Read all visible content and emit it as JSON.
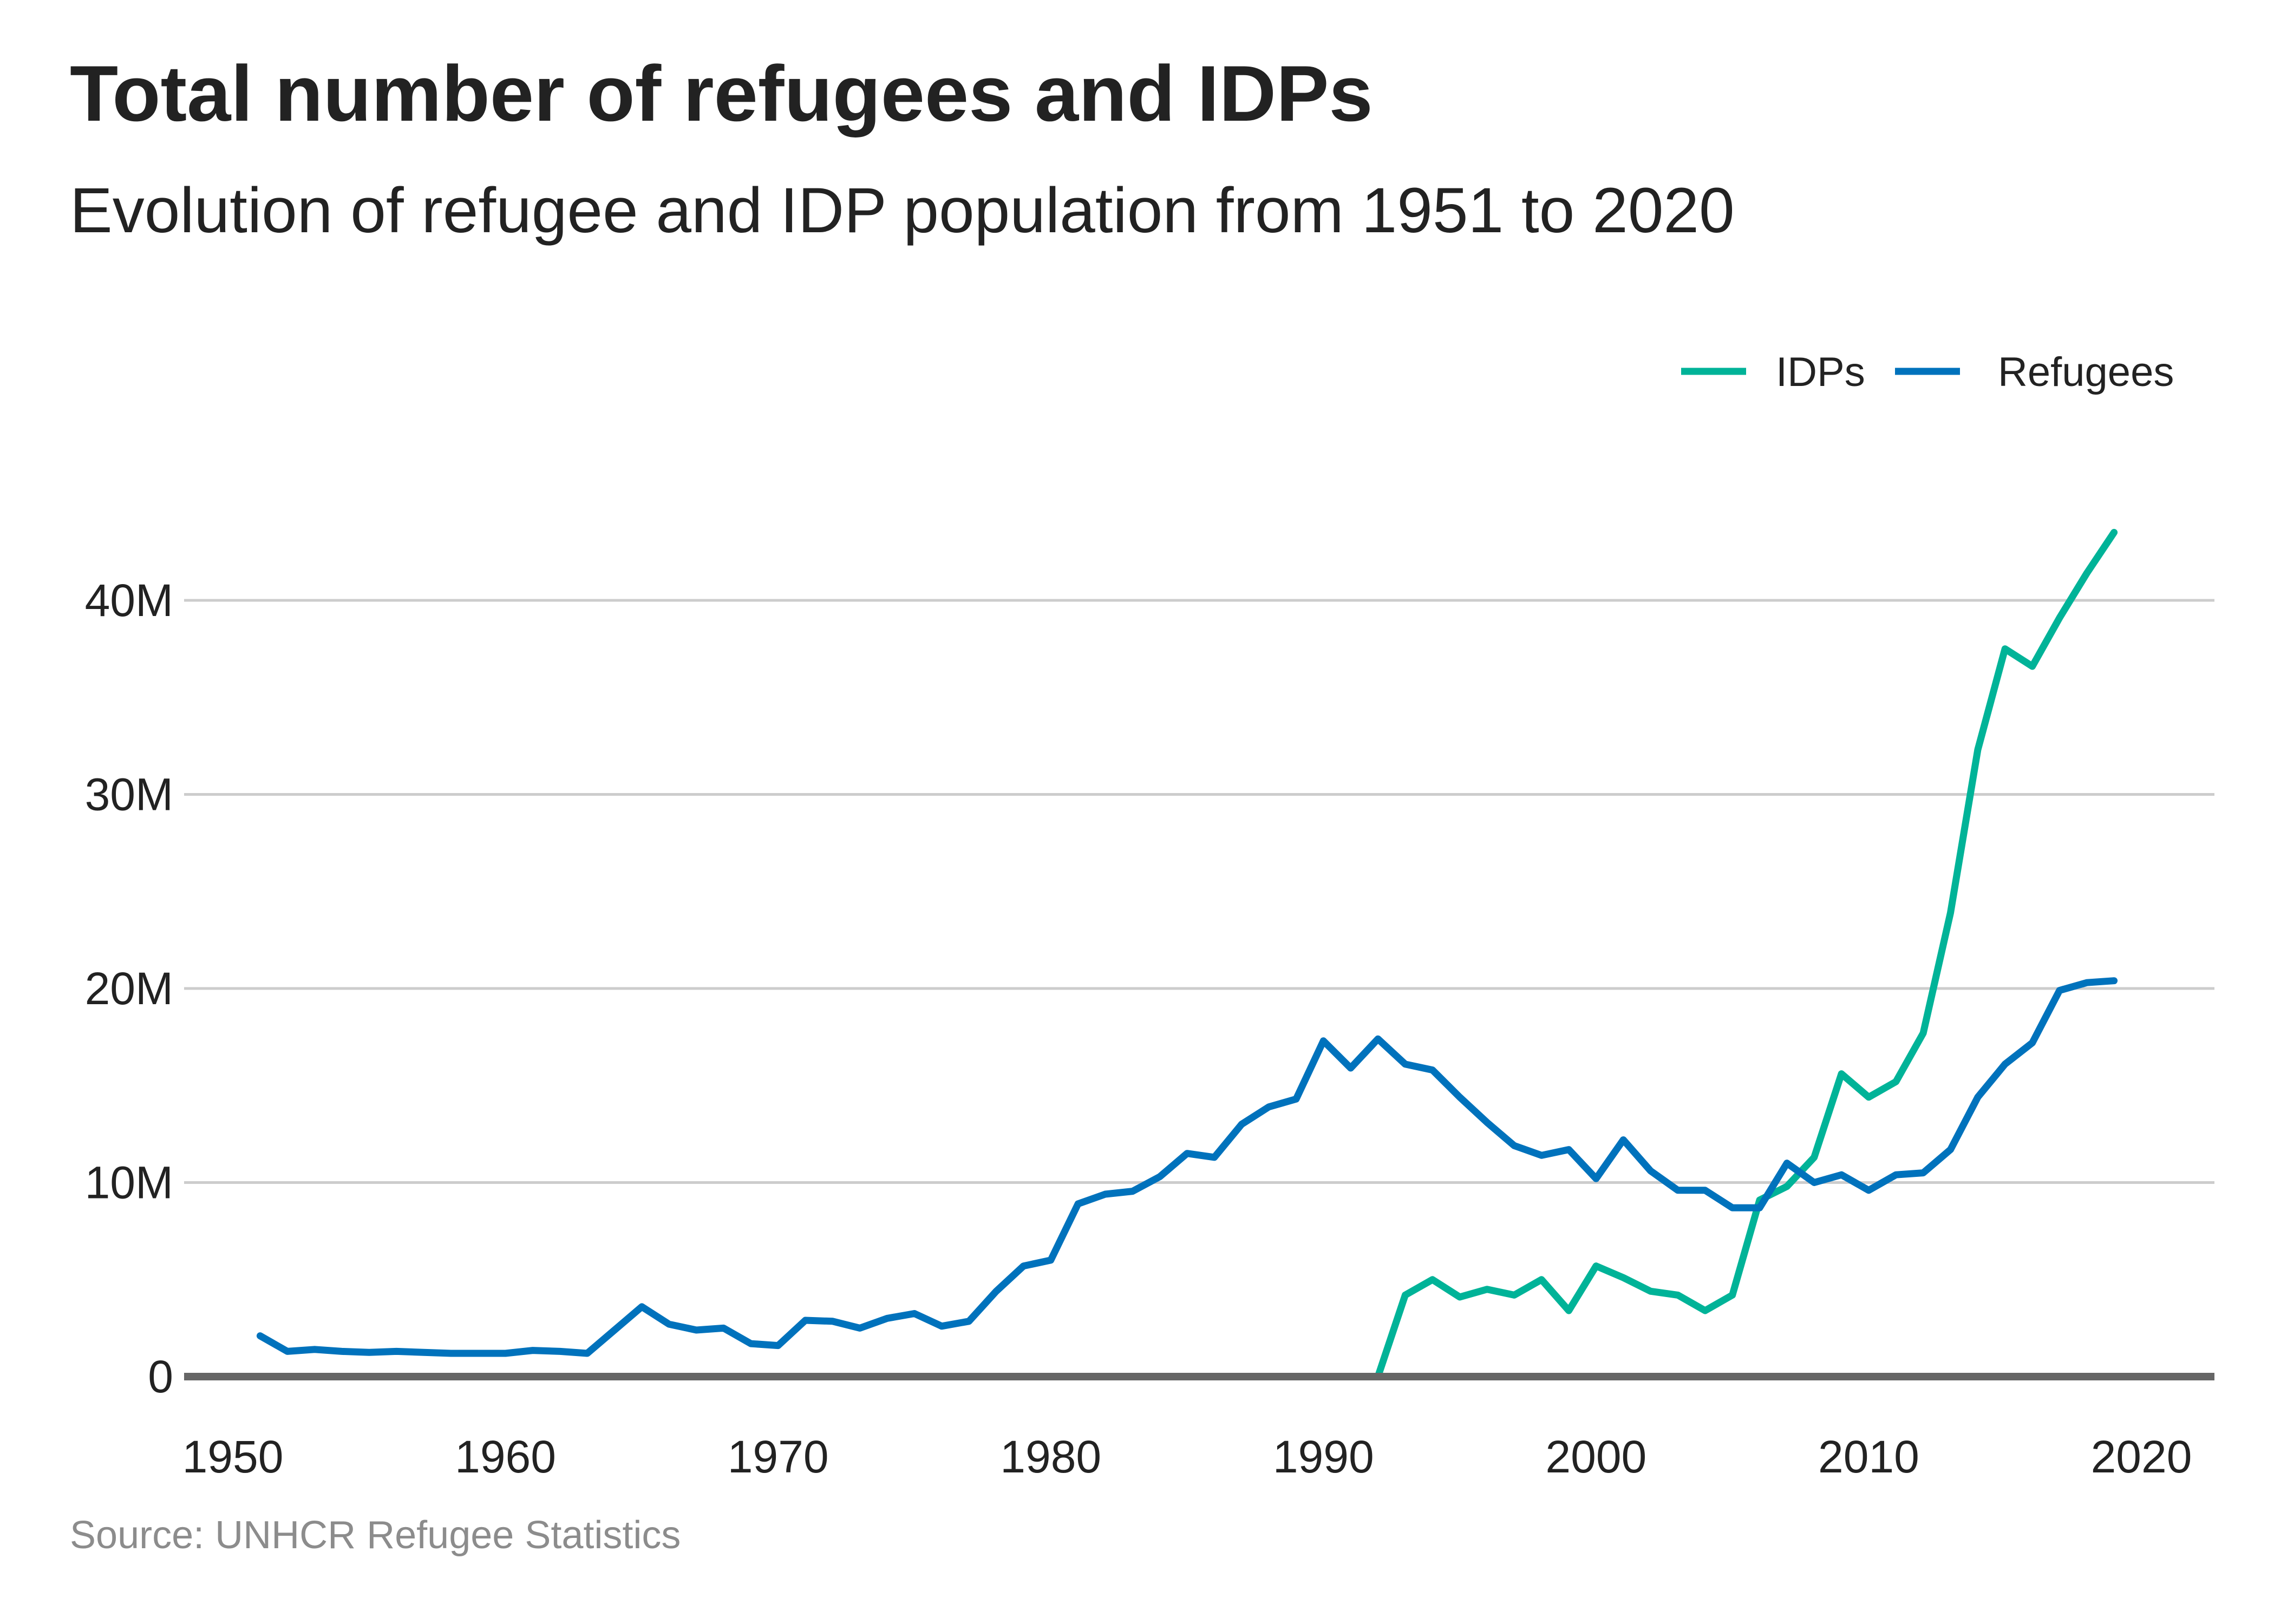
{
  "chart_data": {
    "type": "line",
    "title": "Total number of refugees and IDPs",
    "subtitle": "Evolution of refugee and IDP population from 1951 to 2020",
    "source": "Source: UNHCR Refugee Statistics",
    "xlabel": "",
    "ylabel": "",
    "xlim": [
      1950,
      2020
    ],
    "ylim": [
      0,
      45000000
    ],
    "x_ticks": [
      1950,
      1960,
      1970,
      1980,
      1990,
      2000,
      2010,
      2020
    ],
    "x_tick_labels": [
      "1950",
      "1960",
      "1970",
      "1980",
      "1990",
      "2000",
      "2010",
      "2020"
    ],
    "y_ticks": [
      0,
      10000000,
      20000000,
      30000000,
      40000000
    ],
    "y_tick_labels": [
      "0",
      "10M",
      "20M",
      "30M",
      "40M"
    ],
    "grid": "horizontal",
    "legend_position": "top-right",
    "series": [
      {
        "name": "IDPs",
        "color": "#00b398",
        "x": [
          1992,
          1993,
          1994,
          1995,
          1996,
          1997,
          1998,
          1999,
          2000,
          2001,
          2002,
          2003,
          2004,
          2005,
          2006,
          2007,
          2008,
          2009,
          2010,
          2011,
          2012,
          2013,
          2014,
          2015,
          2016,
          2017,
          2018,
          2019
        ],
        "values": [
          0,
          4200000,
          5000000,
          4100000,
          4500000,
          4200000,
          5000000,
          3400000,
          5700000,
          5100000,
          4400000,
          4200000,
          3400000,
          4200000,
          9100000,
          9800000,
          11300000,
          15600000,
          14400000,
          15200000,
          17700000,
          23900000,
          32300000,
          37500000,
          36600000,
          39100000,
          41400000,
          43500000
        ]
      },
      {
        "name": "Refugees",
        "color": "#0072bc",
        "x": [
          1951,
          1952,
          1953,
          1954,
          1955,
          1956,
          1957,
          1958,
          1959,
          1960,
          1961,
          1962,
          1963,
          1964,
          1965,
          1966,
          1967,
          1968,
          1969,
          1970,
          1971,
          1972,
          1973,
          1974,
          1975,
          1976,
          1977,
          1978,
          1979,
          1980,
          1981,
          1982,
          1983,
          1984,
          1985,
          1986,
          1987,
          1988,
          1989,
          1990,
          1991,
          1992,
          1993,
          1994,
          1995,
          1996,
          1997,
          1998,
          1999,
          2000,
          2001,
          2002,
          2003,
          2004,
          2005,
          2006,
          2007,
          2008,
          2009,
          2010,
          2011,
          2012,
          2013,
          2014,
          2015,
          2016,
          2017,
          2018,
          2019
        ],
        "values": [
          2100000,
          1300000,
          1400000,
          1300000,
          1250000,
          1300000,
          1250000,
          1200000,
          1200000,
          1200000,
          1350000,
          1300000,
          1200000,
          2400000,
          3600000,
          2700000,
          2400000,
          2500000,
          1700000,
          1600000,
          2900000,
          2850000,
          2500000,
          3000000,
          3250000,
          2600000,
          2850000,
          4400000,
          5700000,
          6000000,
          8900000,
          9400000,
          9550000,
          10300000,
          11500000,
          11300000,
          13000000,
          13900000,
          14300000,
          17300000,
          15900000,
          17400000,
          16100000,
          15800000,
          14400000,
          13100000,
          11900000,
          11400000,
          11700000,
          10200000,
          12200000,
          10600000,
          9600000,
          9600000,
          8700000,
          8700000,
          11000000,
          10000000,
          10400000,
          9600000,
          10400000,
          10500000,
          11700000,
          14400000,
          16100000,
          17200000,
          19900000,
          20300000,
          20400000
        ]
      }
    ]
  }
}
